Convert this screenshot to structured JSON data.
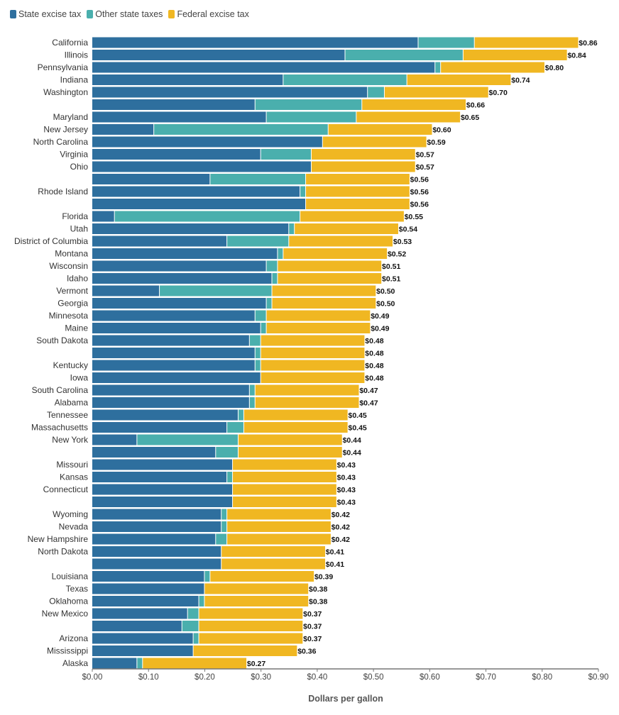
{
  "chart_data": {
    "type": "bar",
    "orientation": "horizontal",
    "stacked": true,
    "xlabel": "Dollars per gallon",
    "xlim": [
      0,
      0.9
    ],
    "xticks": [
      "$0.00",
      "$0.10",
      "$0.20",
      "$0.30",
      "$0.40",
      "$0.50",
      "$0.60",
      "$0.70",
      "$0.80",
      "$0.90"
    ],
    "legend_position": "top-left",
    "grid": false,
    "series": [
      {
        "name": "State excise tax",
        "color": "#2e6f9e"
      },
      {
        "name": "Other state taxes",
        "color": "#4aafad"
      },
      {
        "name": "Federal excise tax",
        "color": "#f0b722"
      }
    ],
    "categories": [
      "California",
      "Illinois",
      "Pennsylvania",
      "Indiana",
      "Washington",
      "",
      "Maryland",
      "New Jersey",
      "North Carolina",
      "Virginia",
      "Ohio",
      "",
      "Rhode Island",
      "",
      "Florida",
      "Utah",
      "District of Columbia",
      "Montana",
      "Wisconsin",
      "Idaho",
      "Vermont",
      "Georgia",
      "Minnesota",
      "Maine",
      "South Dakota",
      "",
      "Kentucky",
      "Iowa",
      "South Carolina",
      "Alabama",
      "Tennessee",
      "Massachusetts",
      "New York",
      "",
      "Missouri",
      "Kansas",
      "Connecticut",
      "",
      "Wyoming",
      "Nevada",
      "New Hampshire",
      "North Dakota",
      "",
      "Louisiana",
      "Texas",
      "Oklahoma",
      "New Mexico",
      "",
      "Arizona",
      "Mississippi",
      "Alaska"
    ],
    "state": [
      0.58,
      0.45,
      0.61,
      0.34,
      0.49,
      0.29,
      0.31,
      0.11,
      0.41,
      0.3,
      0.39,
      0.21,
      0.37,
      0.38,
      0.04,
      0.35,
      0.24,
      0.33,
      0.31,
      0.32,
      0.12,
      0.31,
      0.29,
      0.3,
      0.28,
      0.29,
      0.29,
      0.3,
      0.28,
      0.28,
      0.26,
      0.24,
      0.08,
      0.22,
      0.25,
      0.24,
      0.25,
      0.25,
      0.23,
      0.23,
      0.22,
      0.23,
      0.23,
      0.2,
      0.2,
      0.19,
      0.17,
      0.16,
      0.18,
      0.18,
      0.08
    ],
    "other": [
      0.1,
      0.21,
      0.01,
      0.22,
      0.03,
      0.19,
      0.16,
      0.31,
      0,
      0.09,
      0,
      0.17,
      0.01,
      0,
      0.33,
      0.01,
      0.11,
      0.01,
      0.02,
      0.01,
      0.2,
      0.01,
      0.02,
      0.01,
      0.02,
      0.01,
      0.01,
      0,
      0.01,
      0.01,
      0.01,
      0.03,
      0.18,
      0.04,
      0,
      0.01,
      0,
      0,
      0.01,
      0.01,
      0.02,
      0,
      0,
      0.01,
      0,
      0.01,
      0.02,
      0.03,
      0.01,
      0,
      0.01
    ],
    "federal": 0.184,
    "totals": [
      "$0.86",
      "$0.84",
      "$0.80",
      "$0.74",
      "$0.70",
      "$0.66",
      "$0.65",
      "$0.60",
      "$0.59",
      "$0.57",
      "$0.57",
      "$0.56",
      "$0.56",
      "$0.56",
      "$0.55",
      "$0.54",
      "$0.53",
      "$0.52",
      "$0.51",
      "$0.51",
      "$0.50",
      "$0.50",
      "$0.49",
      "$0.49",
      "$0.48",
      "$0.48",
      "$0.48",
      "$0.48",
      "$0.47",
      "$0.47",
      "$0.45",
      "$0.45",
      "$0.44",
      "$0.44",
      "$0.43",
      "$0.43",
      "$0.43",
      "$0.43",
      "$0.42",
      "$0.42",
      "$0.42",
      "$0.41",
      "$0.41",
      "$0.39",
      "$0.38",
      "$0.38",
      "$0.37",
      "$0.37",
      "$0.37",
      "$0.36",
      "$0.27"
    ],
    "total_values": [
      0.86,
      0.84,
      0.8,
      0.74,
      0.7,
      0.66,
      0.65,
      0.6,
      0.59,
      0.57,
      0.57,
      0.56,
      0.56,
      0.56,
      0.55,
      0.54,
      0.53,
      0.52,
      0.51,
      0.51,
      0.5,
      0.5,
      0.49,
      0.49,
      0.48,
      0.48,
      0.48,
      0.48,
      0.47,
      0.47,
      0.45,
      0.45,
      0.44,
      0.44,
      0.43,
      0.43,
      0.43,
      0.43,
      0.42,
      0.42,
      0.42,
      0.41,
      0.41,
      0.39,
      0.38,
      0.38,
      0.37,
      0.37,
      0.37,
      0.36,
      0.27
    ]
  }
}
